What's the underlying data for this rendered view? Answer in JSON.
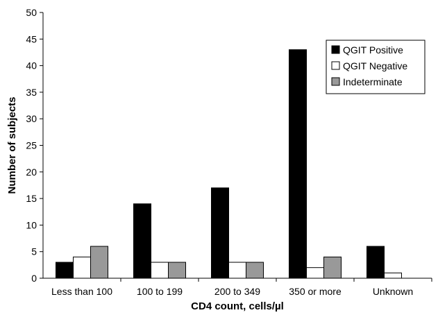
{
  "chart_data": {
    "type": "bar",
    "categories": [
      "Less than 100",
      "100 to 199",
      "200 to 349",
      "350 or more",
      "Unknown"
    ],
    "series": [
      {
        "name": "QGIT Positive",
        "values": [
          3,
          14,
          17,
          43,
          6
        ],
        "color": "#000000"
      },
      {
        "name": "QGIT Negative",
        "values": [
          4,
          3,
          3,
          2,
          1
        ],
        "color": "#ffffff"
      },
      {
        "name": "Indeterminate",
        "values": [
          6,
          3,
          3,
          4,
          0
        ],
        "color": "#999999"
      }
    ],
    "xlabel": "CD4 count, cells/µl",
    "ylabel": "Number of subjects",
    "ylim": [
      0,
      50
    ],
    "yticks": [
      0,
      5,
      10,
      15,
      20,
      25,
      30,
      35,
      40,
      45,
      50
    ],
    "grid": false,
    "legend_position": "top-right"
  }
}
